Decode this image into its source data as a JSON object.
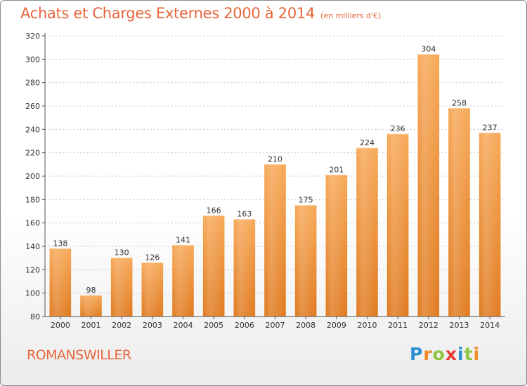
{
  "title": "Achats et Charges Externes 2000 à 2014",
  "subtitle": "(en milliers d'€)",
  "city": "ROMANSWILLER",
  "logo": {
    "letters": [
      "P",
      "r",
      "o",
      "x",
      "i",
      "t",
      "i"
    ],
    "colors": [
      "#2a8fd0",
      "#f08a24",
      "#8cc63f",
      "#e53935",
      "#2a8fd0",
      "#8cc63f",
      "#f08a24"
    ]
  },
  "colors": {
    "bar": "#f0922e",
    "bar_light": "#f7ae63",
    "title": "#e8643a",
    "axis_text": "#333333"
  },
  "chart_data": {
    "type": "bar",
    "categories": [
      "2000",
      "2001",
      "2002",
      "2003",
      "2004",
      "2005",
      "2006",
      "2007",
      "2008",
      "2009",
      "2010",
      "2011",
      "2012",
      "2013",
      "2014"
    ],
    "values": [
      138,
      98,
      130,
      126,
      141,
      166,
      163,
      210,
      175,
      201,
      224,
      236,
      304,
      258,
      237
    ],
    "yticks": [
      80,
      100,
      120,
      140,
      160,
      180,
      200,
      220,
      240,
      260,
      280,
      300,
      320
    ],
    "ylim": [
      80,
      320
    ],
    "grid": true,
    "xlabel": "",
    "ylabel": ""
  }
}
